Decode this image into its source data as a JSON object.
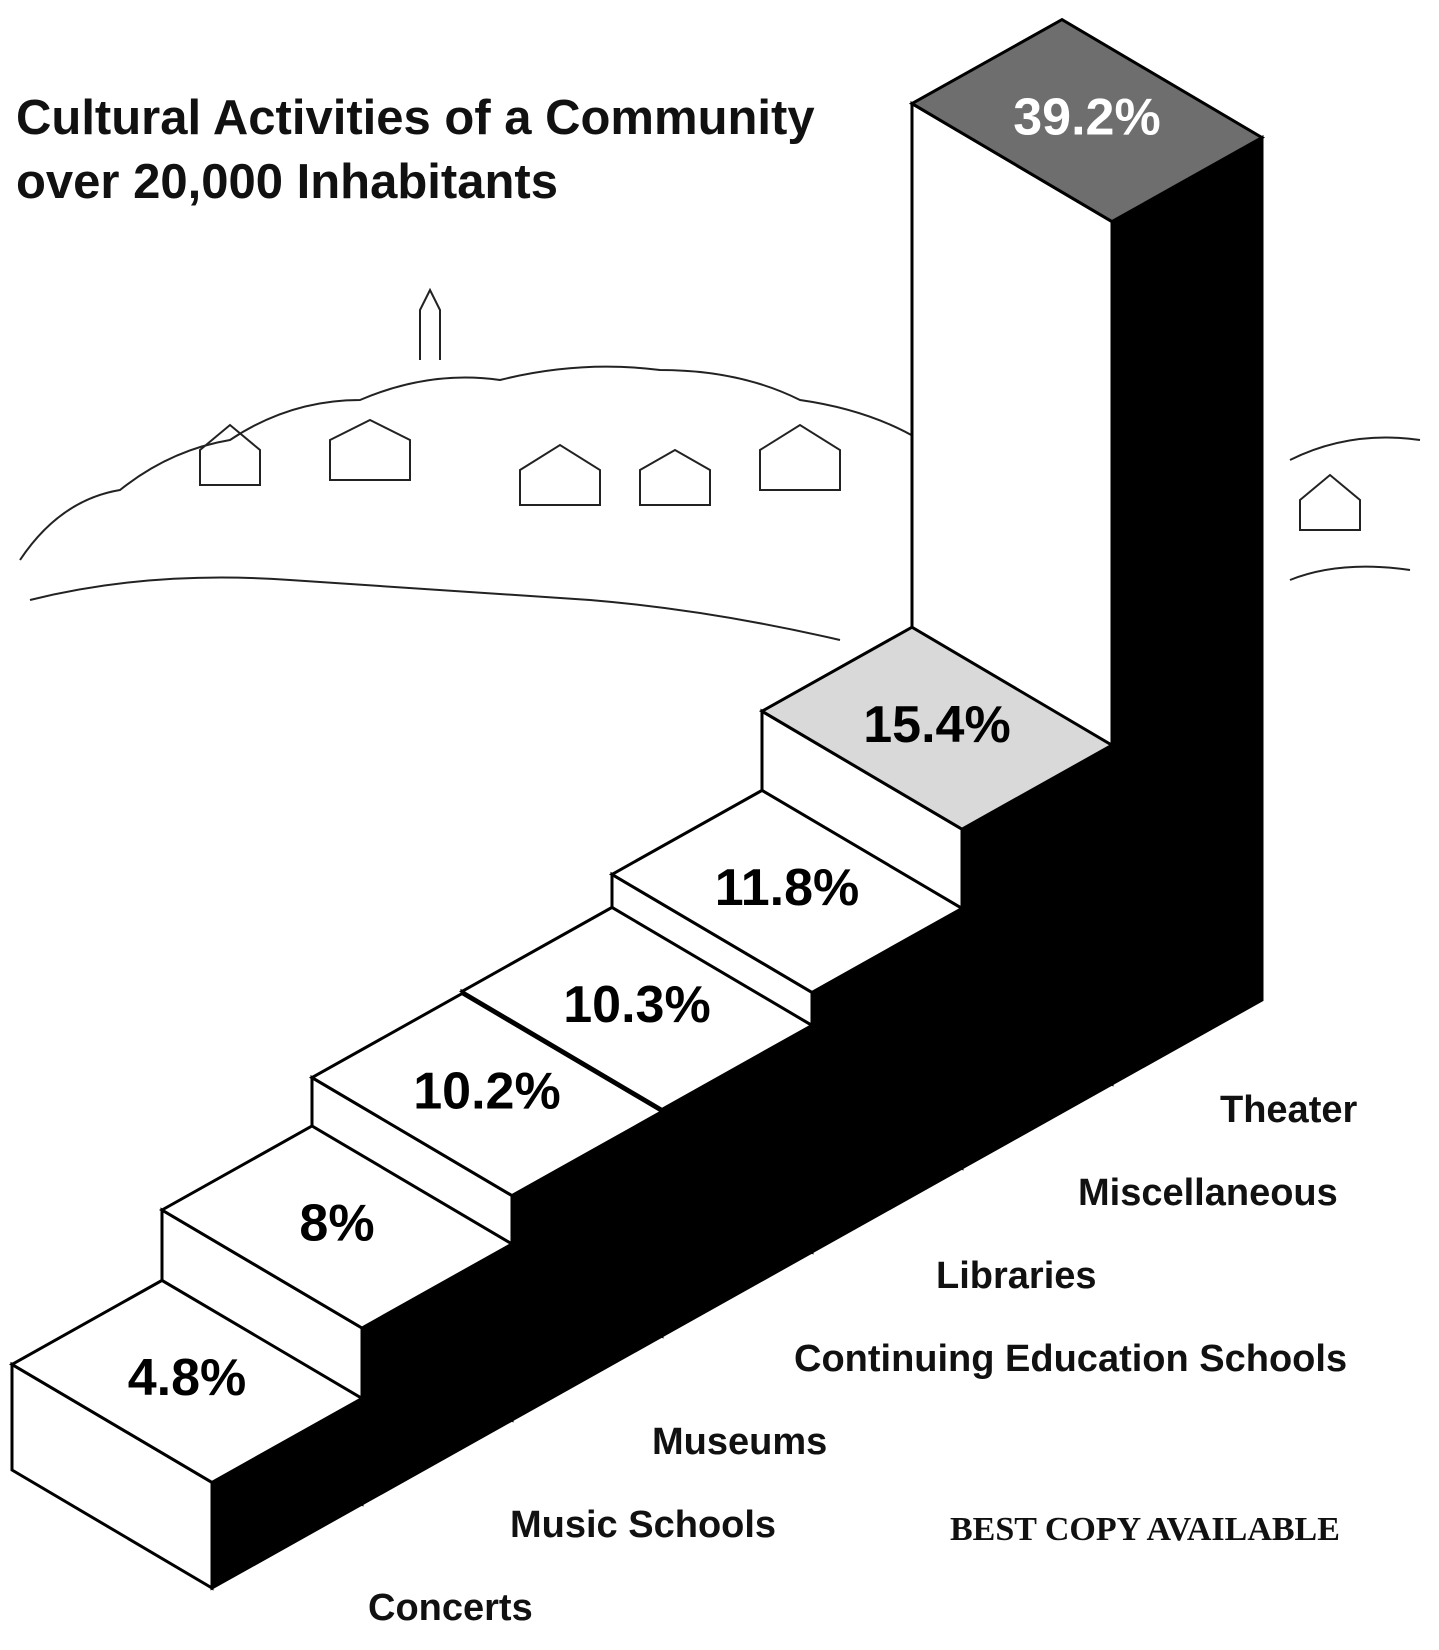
{
  "chart_data": {
    "type": "bar3d-stairs",
    "title": "Cultural Activities of a Community over 20,000 Inhabitants",
    "categories": [
      "Concerts",
      "Music Schools",
      "Museums",
      "Continuing Education Schools",
      "Libraries",
      "Miscellaneous",
      "Theater"
    ],
    "values": [
      4.8,
      8,
      10.2,
      10.3,
      11.8,
      15.4,
      39.2
    ],
    "value_labels": [
      "4.8%",
      "8%",
      "10.2%",
      "10.3%",
      "11.8%",
      "15.4%",
      "39.2%"
    ],
    "top_colors": [
      "#ffffff",
      "#ffffff",
      "#ffffff",
      "#ffffff",
      "#ffffff",
      "#d9d9d9",
      "#6e6e6e"
    ],
    "front_color": "#ffffff",
    "side_color": "#000000",
    "note": "BEST COPY AVAILABLE"
  }
}
